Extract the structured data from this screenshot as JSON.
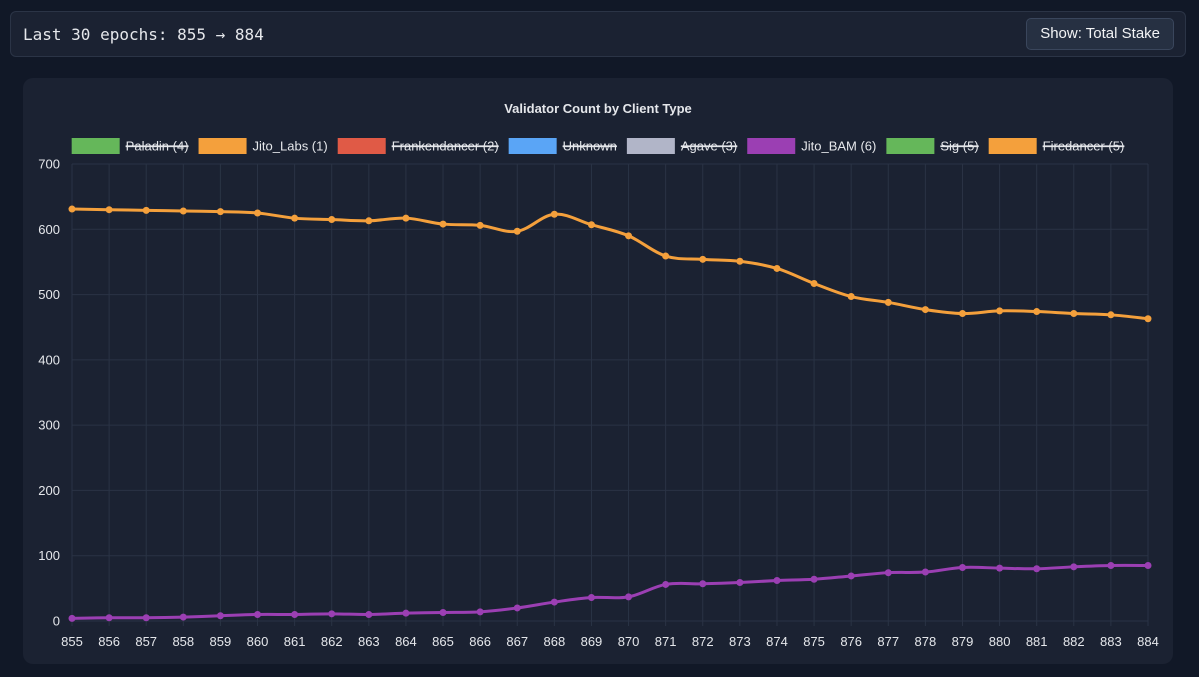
{
  "header": {
    "range_label": "Last 30 epochs: 855 → 884",
    "toggle_label": "Show: Total Stake"
  },
  "colors": {
    "page_bg": "#111827",
    "panel_bg": "#1b2232",
    "grid": "#2a3345",
    "text": "#e5e7eb"
  },
  "chart_data": {
    "type": "line",
    "title": "Validator Count by Client Type",
    "xlabel": "",
    "ylabel": "",
    "ylim": [
      0,
      700
    ],
    "y_ticks": [
      0,
      100,
      200,
      300,
      400,
      500,
      600,
      700
    ],
    "grid": true,
    "legend_position": "top",
    "x": [
      855,
      856,
      857,
      858,
      859,
      860,
      861,
      862,
      863,
      864,
      865,
      866,
      867,
      868,
      869,
      870,
      871,
      872,
      873,
      874,
      875,
      876,
      877,
      878,
      879,
      880,
      881,
      882,
      883,
      884
    ],
    "legend": [
      {
        "label": "Paladin (4)",
        "color": "#65b75a",
        "hidden": true
      },
      {
        "label": "Jito_Labs (1)",
        "color": "#f4a03c",
        "hidden": false
      },
      {
        "label": "Frankendancer (2)",
        "color": "#e05a46",
        "hidden": true
      },
      {
        "label": "Unknown",
        "color": "#5aa5f6",
        "hidden": true
      },
      {
        "label": "Agave (3)",
        "color": "#b1b5c8",
        "hidden": true
      },
      {
        "label": "Jito_BAM (6)",
        "color": "#9b3fb3",
        "hidden": false
      },
      {
        "label": "Sig (5)",
        "color": "#65b75a",
        "hidden": true
      },
      {
        "label": "Firedancer (5)",
        "color": "#f4a03c",
        "hidden": true
      }
    ],
    "series": [
      {
        "name": "Jito_Labs (1)",
        "color": "#f4a03c",
        "values": [
          631,
          630,
          629,
          628,
          627,
          625,
          617,
          615,
          613,
          617,
          608,
          606,
          597,
          623,
          607,
          590,
          559,
          554,
          551,
          540,
          517,
          497,
          488,
          477,
          471,
          475,
          474,
          471,
          469,
          463
        ]
      },
      {
        "name": "Jito_BAM (6)",
        "color": "#9b3fb3",
        "values": [
          4,
          5,
          5,
          6,
          8,
          10,
          10,
          11,
          10,
          12,
          13,
          14,
          20,
          29,
          36,
          37,
          56,
          57,
          59,
          62,
          64,
          69,
          74,
          75,
          82,
          81,
          80,
          83,
          85,
          85
        ]
      }
    ]
  }
}
